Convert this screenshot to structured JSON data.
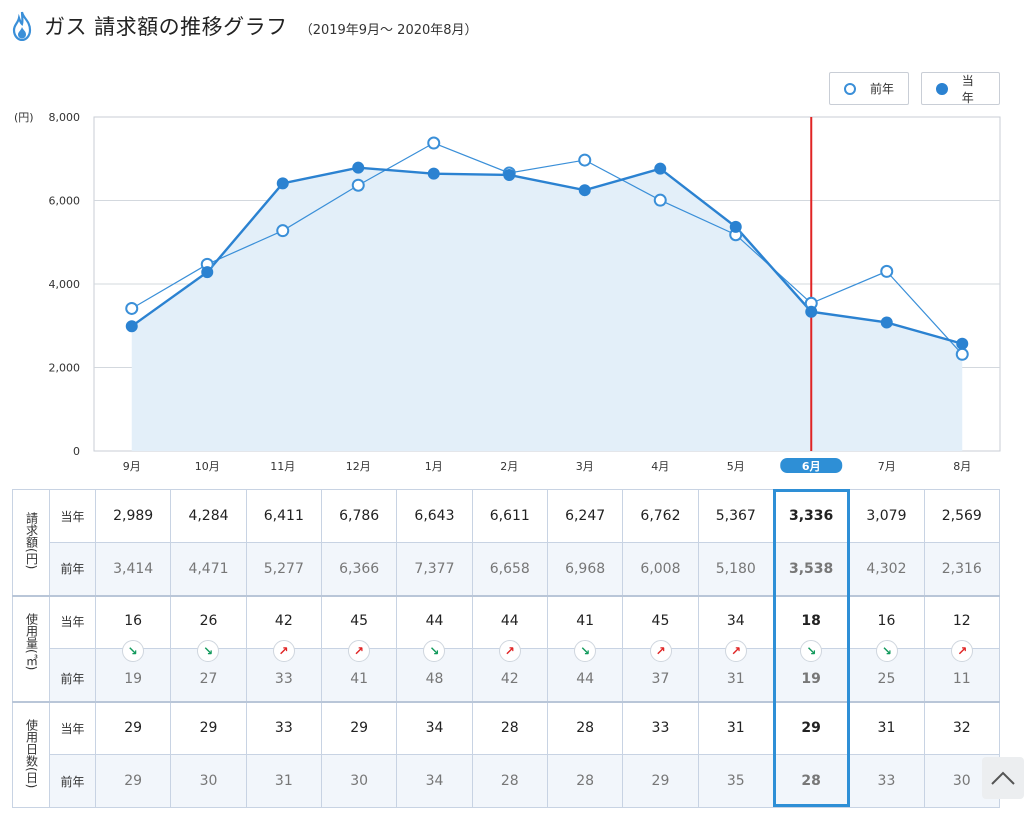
{
  "header": {
    "title": "ガス 請求額の推移グラフ",
    "subtitle": "（2019年9月〜 2020年8月）",
    "icon": "flame-icon",
    "icon_color": "#3a8fd8"
  },
  "legend": {
    "previous_label": "前年",
    "current_label": "当年"
  },
  "chart_data": {
    "type": "line",
    "title": "ガス 請求額の推移グラフ",
    "ylabel": "(円)",
    "xlabel": "",
    "ylim": [
      0,
      8000
    ],
    "yticks": [
      "0",
      "2,000",
      "4,000",
      "6,000",
      "8,000"
    ],
    "grid": true,
    "legend_position": "top-right",
    "categories": [
      "9月",
      "10月",
      "11月",
      "12月",
      "1月",
      "2月",
      "3月",
      "4月",
      "5月",
      "6月",
      "7月",
      "8月"
    ],
    "selected_category": "6月",
    "series": [
      {
        "name": "当年",
        "values": [
          2989,
          4284,
          6411,
          6786,
          6643,
          6611,
          6247,
          6762,
          5367,
          3336,
          3079,
          2569
        ],
        "color": "#2b82d1",
        "marker": "filled",
        "area_fill": "#e3eff9"
      },
      {
        "name": "前年",
        "values": [
          3414,
          4471,
          5277,
          6366,
          7377,
          6658,
          6968,
          6008,
          5180,
          3538,
          4302,
          2316
        ],
        "color": "#3a8fd8",
        "marker": "open"
      }
    ],
    "marker_line_color": "#e02424"
  },
  "table": {
    "groups": [
      {
        "label": "請求額(円)",
        "rows": [
          {
            "label": "当年",
            "values": [
              "2,989",
              "4,284",
              "6,411",
              "6,786",
              "6,643",
              "6,611",
              "6,247",
              "6,762",
              "5,367",
              "3,336",
              "3,079",
              "2,569"
            ]
          },
          {
            "label": "前年",
            "values": [
              "3,414",
              "4,471",
              "5,277",
              "6,366",
              "7,377",
              "6,658",
              "6,968",
              "6,008",
              "5,180",
              "3,538",
              "4,302",
              "2,316"
            ]
          }
        ]
      },
      {
        "label": "使用量(㎥)",
        "rows": [
          {
            "label": "当年",
            "values": [
              "16",
              "26",
              "42",
              "45",
              "44",
              "44",
              "41",
              "45",
              "34",
              "18",
              "16",
              "12"
            ]
          },
          {
            "label": "前年",
            "values": [
              "19",
              "27",
              "33",
              "41",
              "48",
              "42",
              "44",
              "37",
              "31",
              "19",
              "25",
              "11"
            ]
          }
        ],
        "trend": [
          "down",
          "down",
          "up",
          "up",
          "down",
          "up",
          "down",
          "up",
          "up",
          "down",
          "down",
          "up"
        ]
      },
      {
        "label": "使用日数(日)",
        "rows": [
          {
            "label": "当年",
            "values": [
              "29",
              "29",
              "33",
              "29",
              "34",
              "28",
              "28",
              "33",
              "31",
              "29",
              "31",
              "32"
            ]
          },
          {
            "label": "前年",
            "values": [
              "29",
              "30",
              "31",
              "30",
              "34",
              "28",
              "28",
              "29",
              "35",
              "28",
              "33",
              "30"
            ]
          }
        ]
      }
    ],
    "highlight_index": 9,
    "highlight_color": "#2e8fd6"
  },
  "scroll_top": {
    "icon": "chevron-up-icon"
  }
}
